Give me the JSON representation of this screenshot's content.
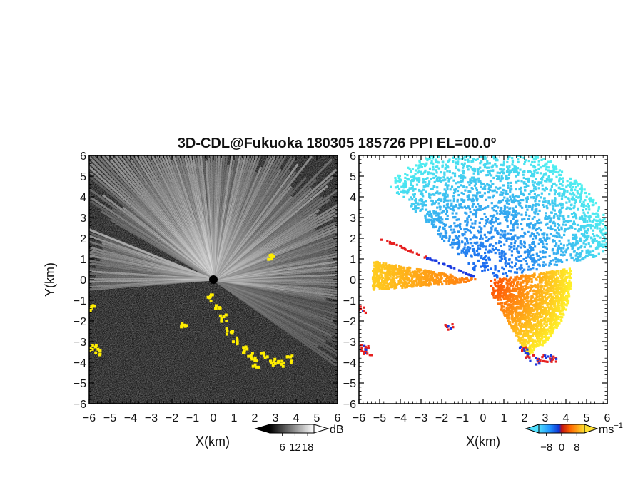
{
  "title": "3D-CDL@Fukuoka 180305 185726 PPI EL=00.0º",
  "chart_data": [
    {
      "type": "heatmap",
      "panel": "left",
      "quantity": "intensity",
      "xlabel": "X(km)",
      "ylabel": "Y(km)",
      "xlim": [
        -6,
        6
      ],
      "ylim": [
        -6,
        6
      ],
      "xticks": [
        "−6",
        "−5",
        "−4",
        "−3",
        "−2",
        "−1",
        "0",
        "1",
        "2",
        "3",
        "4",
        "5",
        "6"
      ],
      "yticks": [
        "−6",
        "−5",
        "−4",
        "−3",
        "−2",
        "−1",
        "0",
        "1",
        "2",
        "3",
        "4",
        "5",
        "6"
      ],
      "colorbar": {
        "ticks": [
          "6",
          "12",
          "18"
        ],
        "tick_values": [
          6,
          12,
          18
        ],
        "range": [
          0,
          21
        ],
        "unit": "dB"
      },
      "background_color": "#1a1a1a",
      "highlight_color": "#ffee00"
    },
    {
      "type": "heatmap",
      "panel": "right",
      "quantity": "radial velocity",
      "xlabel": "X(km)",
      "xlim": [
        -6,
        6
      ],
      "ylim": [
        -6,
        6
      ],
      "xticks": [
        "−6",
        "−5",
        "−4",
        "−3",
        "−2",
        "−1",
        "0",
        "1",
        "2",
        "3",
        "4",
        "5",
        "6"
      ],
      "yticks": [
        "−6",
        "−5",
        "−4",
        "−3",
        "−2",
        "−1",
        "0",
        "1",
        "2",
        "3",
        "4",
        "5",
        "6"
      ],
      "colorbar": {
        "ticks": [
          "−8",
          "0",
          "8"
        ],
        "tick_values": [
          -8,
          0,
          8
        ],
        "range": [
          -12,
          12
        ],
        "unit": "ms",
        "unit_sup": "−1"
      },
      "colors": {
        "negative": "#1e78f0",
        "positive": "#ff6a00",
        "edge_red": "#e62020",
        "edge_blue": "#1a3ae0"
      }
    }
  ]
}
